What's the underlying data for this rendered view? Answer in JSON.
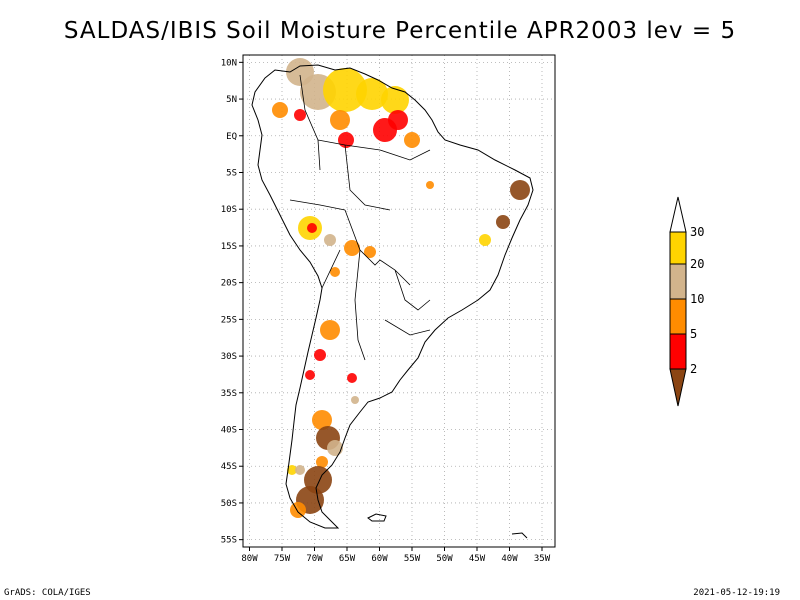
{
  "title": "SALDAS/IBIS Soil Moisture Percentile APR2003 lev = 5",
  "footer": {
    "left": "GrADS: COLA/IGES",
    "right": "2021-05-12-19:19"
  },
  "map": {
    "lon_range": [
      -81,
      -33
    ],
    "lat_range": [
      -56,
      11
    ],
    "grid": true,
    "lon_ticks": [
      "80W",
      "75W",
      "70W",
      "65W",
      "60W",
      "55W",
      "50W",
      "45W",
      "40W",
      "35W"
    ],
    "lon_values": [
      -80,
      -75,
      -70,
      -65,
      -60,
      -55,
      -50,
      -45,
      -40,
      -35
    ],
    "lat_ticks": [
      "10N",
      "5N",
      "EQ",
      "5S",
      "10S",
      "15S",
      "20S",
      "25S",
      "30S",
      "35S",
      "40S",
      "45S",
      "50S",
      "55S"
    ],
    "lat_values": [
      10,
      5,
      0,
      -5,
      -10,
      -15,
      -20,
      -25,
      -30,
      -35,
      -40,
      -45,
      -50,
      -55
    ]
  },
  "colorbar": {
    "labels": [
      "30",
      "20",
      "10",
      "5",
      "2"
    ],
    "colors": [
      "#ffffff",
      "#ffd400",
      "#d2b48c",
      "#ff8c00",
      "#ff0000",
      "#8b4513"
    ]
  }
}
